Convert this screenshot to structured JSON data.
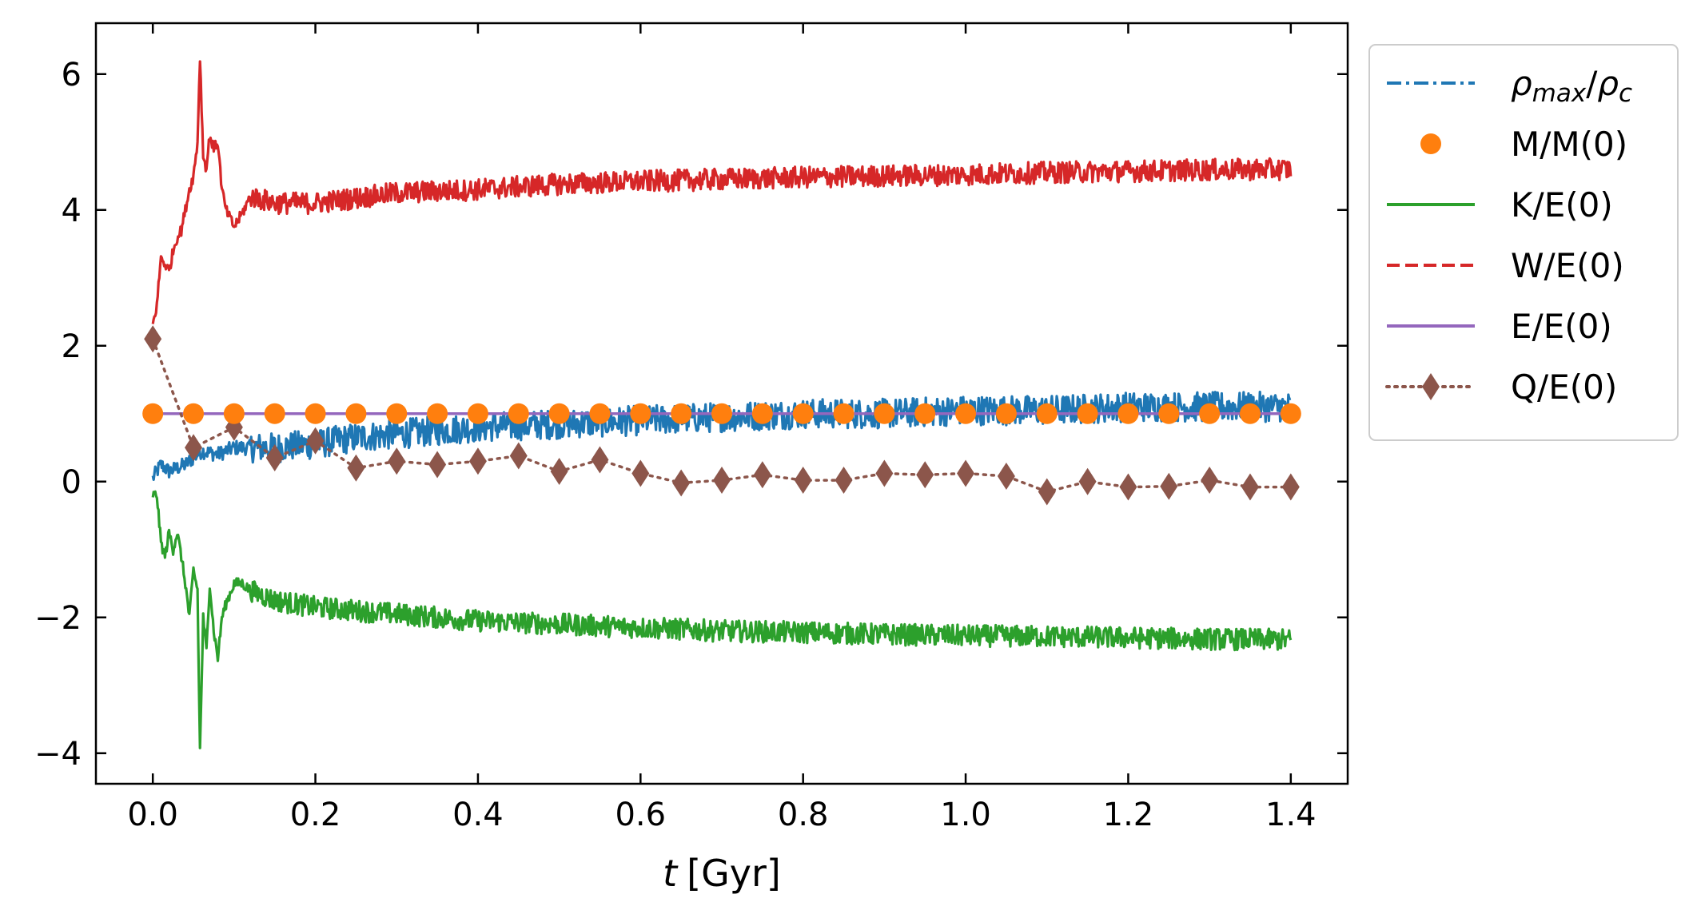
{
  "chart_data": {
    "type": "line",
    "title": "",
    "xlabel": "t [Gyr]",
    "xlabel_var": "t",
    "xlabel_unit": "[Gyr]",
    "ylabel": "",
    "xlim": [
      -0.07,
      1.47
    ],
    "ylim": [
      -4.45,
      6.75
    ],
    "xticks": [
      0.0,
      0.2,
      0.4,
      0.6,
      0.8,
      1.0,
      1.2,
      1.4
    ],
    "xtick_labels": [
      "0.0",
      "0.2",
      "0.4",
      "0.6",
      "0.8",
      "1.0",
      "1.2",
      "1.4"
    ],
    "yticks": [
      -4,
      -2,
      0,
      2,
      4,
      6
    ],
    "ytick_labels": [
      "−4",
      "−2",
      "0",
      "2",
      "4",
      "6"
    ],
    "legend_position": "outside-right-top",
    "series": [
      {
        "name": "rho_max/rho_c",
        "legend_label": "ρmax/ρc",
        "color": "#1f77b4",
        "style": "dashdot",
        "noise": 0.22,
        "x": [
          0,
          0.01,
          0.02,
          0.04,
          0.06,
          0.08,
          0.1,
          0.15,
          0.2,
          0.25,
          0.3,
          0.4,
          0.5,
          0.6,
          0.7,
          0.8,
          0.9,
          1.0,
          1.1,
          1.2,
          1.3,
          1.4
        ],
        "y": [
          0.05,
          0.25,
          0.15,
          0.25,
          0.45,
          0.4,
          0.5,
          0.5,
          0.55,
          0.65,
          0.7,
          0.8,
          0.85,
          0.9,
          0.95,
          1.0,
          1.0,
          1.05,
          1.05,
          1.1,
          1.1,
          1.1
        ]
      },
      {
        "name": "M/M(0)",
        "legend_label": "M/M(0)",
        "color": "#ff7f0e",
        "style": "markers",
        "marker": "circle",
        "x": [
          0,
          0.05,
          0.1,
          0.15,
          0.2,
          0.25,
          0.3,
          0.35,
          0.4,
          0.45,
          0.5,
          0.55,
          0.6,
          0.65,
          0.7,
          0.75,
          0.8,
          0.85,
          0.9,
          0.95,
          1.0,
          1.05,
          1.1,
          1.15,
          1.2,
          1.25,
          1.3,
          1.35,
          1.4
        ],
        "y": [
          1,
          1,
          1,
          1,
          1,
          1,
          1,
          1,
          1,
          1,
          1,
          1,
          1,
          1,
          1,
          1,
          1,
          1,
          1,
          1,
          1,
          1,
          1,
          1,
          1,
          1,
          1,
          1,
          1
        ]
      },
      {
        "name": "K/E(0)",
        "legend_label": "K/E(0)",
        "color": "#2ca02c",
        "style": "solid",
        "noise": 0.16,
        "x": [
          0,
          0.005,
          0.01,
          0.015,
          0.02,
          0.025,
          0.03,
          0.035,
          0.04,
          0.045,
          0.05,
          0.055,
          0.058,
          0.062,
          0.066,
          0.07,
          0.075,
          0.08,
          0.085,
          0.09,
          0.1,
          0.11,
          0.12,
          0.15,
          0.2,
          0.3,
          0.4,
          0.5,
          0.6,
          0.7,
          0.8,
          0.9,
          1.0,
          1.1,
          1.2,
          1.3,
          1.4
        ],
        "y": [
          -0.2,
          -0.2,
          -0.9,
          -1.1,
          -0.75,
          -1.0,
          -0.75,
          -1.1,
          -1.5,
          -2.0,
          -1.3,
          -1.6,
          -3.95,
          -2.0,
          -2.5,
          -1.5,
          -2.2,
          -2.6,
          -2.0,
          -1.8,
          -1.5,
          -1.5,
          -1.6,
          -1.75,
          -1.85,
          -1.95,
          -2.05,
          -2.1,
          -2.15,
          -2.2,
          -2.22,
          -2.25,
          -2.27,
          -2.28,
          -2.3,
          -2.32,
          -2.33
        ]
      },
      {
        "name": "W/E(0)",
        "legend_label": "W/E(0)",
        "color": "#d62728",
        "style": "dashed",
        "noise": 0.16,
        "x": [
          0,
          0.005,
          0.01,
          0.015,
          0.02,
          0.025,
          0.03,
          0.035,
          0.04,
          0.045,
          0.05,
          0.055,
          0.058,
          0.062,
          0.066,
          0.07,
          0.075,
          0.08,
          0.085,
          0.09,
          0.1,
          0.11,
          0.12,
          0.15,
          0.2,
          0.3,
          0.4,
          0.5,
          0.6,
          0.7,
          0.8,
          0.9,
          1.0,
          1.1,
          1.2,
          1.3,
          1.4
        ],
        "y": [
          2.3,
          2.6,
          3.3,
          3.2,
          3.1,
          3.4,
          3.6,
          3.7,
          4.0,
          4.3,
          4.5,
          5.0,
          6.25,
          4.8,
          4.6,
          5.1,
          4.9,
          5.0,
          4.3,
          4.0,
          3.75,
          3.95,
          4.2,
          4.1,
          4.1,
          4.25,
          4.3,
          4.38,
          4.42,
          4.45,
          4.48,
          4.5,
          4.52,
          4.55,
          4.57,
          4.59,
          4.6
        ]
      },
      {
        "name": "E/E(0)",
        "legend_label": "E/E(0)",
        "color": "#9467bd",
        "style": "solid",
        "x": [
          0,
          1.4
        ],
        "y": [
          1.0,
          1.0
        ]
      },
      {
        "name": "Q/E(0)",
        "legend_label": "Q/E(0)",
        "color": "#8c564b",
        "style": "dotted",
        "marker": "diamond",
        "x": [
          0,
          0.05,
          0.1,
          0.15,
          0.2,
          0.25,
          0.3,
          0.35,
          0.4,
          0.45,
          0.5,
          0.55,
          0.6,
          0.65,
          0.7,
          0.75,
          0.8,
          0.85,
          0.9,
          0.95,
          1.0,
          1.05,
          1.1,
          1.15,
          1.2,
          1.25,
          1.3,
          1.35,
          1.4
        ],
        "y": [
          2.1,
          0.5,
          0.8,
          0.35,
          0.6,
          0.2,
          0.3,
          0.25,
          0.3,
          0.38,
          0.15,
          0.32,
          0.12,
          -0.02,
          0.02,
          0.1,
          0.02,
          0.02,
          0.12,
          0.1,
          0.12,
          0.08,
          -0.15,
          0.0,
          -0.08,
          -0.07,
          0.02,
          -0.08,
          -0.08
        ]
      }
    ]
  }
}
